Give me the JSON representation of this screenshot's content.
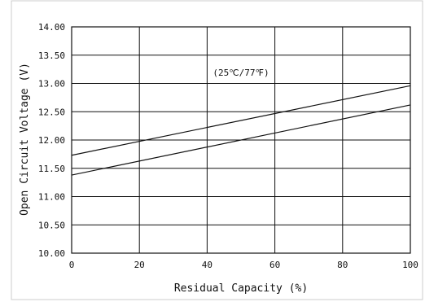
{
  "chart_data": {
    "type": "line",
    "title": "",
    "xlabel": "Residual Capacity (%)",
    "ylabel": "Open Circuit Voltage (V)",
    "xlim": [
      0,
      100
    ],
    "ylim": [
      10.0,
      14.0
    ],
    "x_ticks": [
      "0",
      "20",
      "40",
      "60",
      "80",
      "100"
    ],
    "y_ticks": [
      "10.00",
      "10.50",
      "11.00",
      "11.50",
      "12.00",
      "12.50",
      "13.00",
      "13.50",
      "14.00"
    ],
    "grid": true,
    "annotation": "(25℃/77℉)",
    "series": [
      {
        "x": [
          0,
          100
        ],
        "y": [
          11.73,
          12.96
        ]
      },
      {
        "x": [
          0,
          100
        ],
        "y": [
          11.38,
          12.62
        ]
      }
    ],
    "colors": {
      "line": "#111111",
      "grid": "#111111",
      "frame": "#cccccc"
    }
  }
}
